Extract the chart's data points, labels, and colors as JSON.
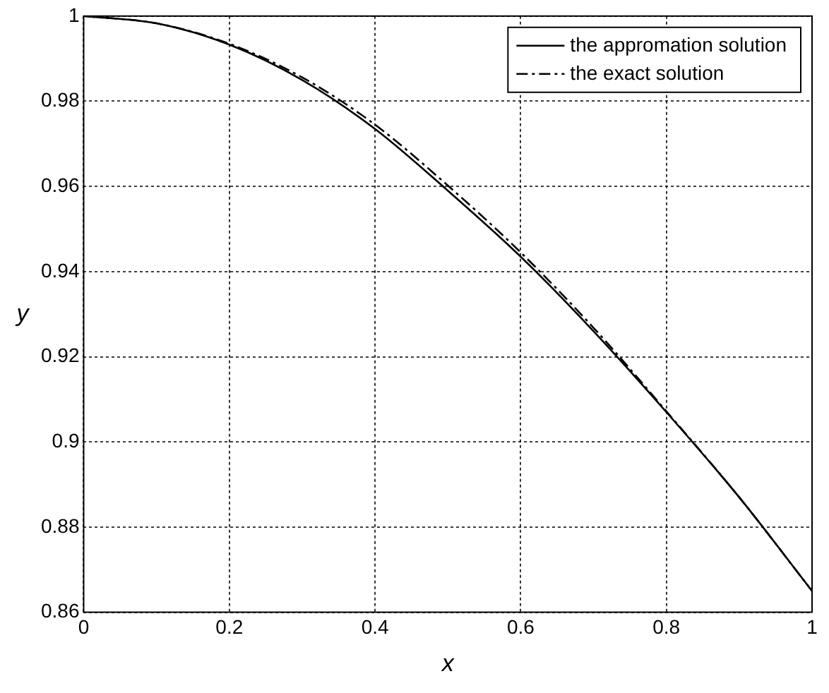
{
  "chart_data": {
    "type": "line",
    "xlabel": "x",
    "ylabel": "y",
    "x": [
      0,
      0.1,
      0.2,
      0.3,
      0.4,
      0.5,
      0.6,
      0.7,
      0.8,
      0.9,
      1
    ],
    "series": [
      {
        "name": "the appromation solution",
        "color": "#000000",
        "line_style": "solid",
        "values": [
          1,
          0.9983,
          0.9933,
          0.985,
          0.9735,
          0.959,
          0.9435,
          0.926,
          0.907,
          0.887,
          0.865
        ]
      },
      {
        "name": "the exact solution",
        "color": "#000000",
        "line_style": "dashdot",
        "values": [
          1,
          0.9983,
          0.9935,
          0.9856,
          0.9745,
          0.9602,
          0.9445,
          0.9268,
          0.9072,
          0.887,
          0.865
        ]
      }
    ],
    "xlim": [
      0,
      1
    ],
    "xticks": [
      0,
      0.2,
      0.4,
      0.6,
      0.8,
      1
    ],
    "ylim": [
      0.86,
      1
    ],
    "yticks": [
      0.86,
      0.88,
      0.9,
      0.92,
      0.94,
      0.96,
      0.98,
      1
    ],
    "grid": true,
    "legend": "top right",
    "marker": "none"
  }
}
